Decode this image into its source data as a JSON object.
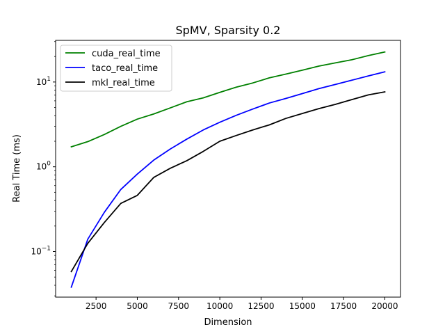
{
  "chart_data": {
    "type": "line",
    "title": "SpMV, Sparsity 0.2",
    "xlabel": "Dimension",
    "ylabel": "Real Time (ms)",
    "xlim": [
      50,
      20950
    ],
    "ylim": [
      0.029,
      31
    ],
    "yscale": "log",
    "grid": false,
    "legend_position": "top-left",
    "xticks": [
      {
        "value": 2500,
        "label": "2500"
      },
      {
        "value": 5000,
        "label": "5000"
      },
      {
        "value": 7500,
        "label": "7500"
      },
      {
        "value": 10000,
        "label": "10000"
      },
      {
        "value": 12500,
        "label": "12500"
      },
      {
        "value": 15000,
        "label": "15000"
      },
      {
        "value": 17500,
        "label": "17500"
      },
      {
        "value": 20000,
        "label": "20000"
      }
    ],
    "yticks": [
      {
        "value": 0.1,
        "base": "10",
        "exp": "−1"
      },
      {
        "value": 1,
        "base": "10",
        "exp": "0"
      },
      {
        "value": 10,
        "base": "10",
        "exp": "1"
      }
    ],
    "x": [
      1000,
      2000,
      3000,
      4000,
      5000,
      6000,
      7000,
      8000,
      9000,
      10000,
      11000,
      12000,
      13000,
      14000,
      15000,
      16000,
      17000,
      18000,
      19000,
      20000
    ],
    "series": [
      {
        "name": "cuda_real_time",
        "color": "#008000",
        "values": [
          1.72,
          1.98,
          2.4,
          3.0,
          3.65,
          4.2,
          4.95,
          5.85,
          6.5,
          7.55,
          8.7,
          9.75,
          11.2,
          12.4,
          13.8,
          15.4,
          16.8,
          18.3,
          20.5,
          22.6
        ]
      },
      {
        "name": "taco_real_time",
        "color": "#0000ff",
        "values": [
          0.038,
          0.14,
          0.29,
          0.54,
          0.82,
          1.2,
          1.62,
          2.12,
          2.72,
          3.35,
          4.05,
          4.8,
          5.65,
          6.4,
          7.3,
          8.35,
          9.35,
          10.5,
          11.8,
          13.2
        ]
      },
      {
        "name": "mkl_real_time",
        "color": "#000000",
        "values": [
          0.058,
          0.125,
          0.22,
          0.37,
          0.46,
          0.75,
          0.96,
          1.18,
          1.52,
          2.0,
          2.34,
          2.72,
          3.12,
          3.72,
          4.25,
          4.85,
          5.45,
          6.2,
          7.05,
          7.65
        ]
      }
    ]
  }
}
